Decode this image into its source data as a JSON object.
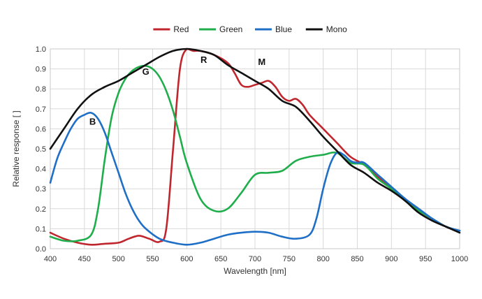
{
  "chart_data": {
    "type": "line",
    "xlabel": "Wavelength [nm]",
    "ylabel": "Relative response [ ]",
    "xlim": [
      400,
      1000
    ],
    "ylim": [
      0,
      1.0
    ],
    "x_ticks": [
      400,
      450,
      500,
      550,
      600,
      650,
      700,
      750,
      800,
      850,
      900,
      950,
      1000
    ],
    "y_ticks": [
      0.0,
      0.1,
      0.2,
      0.3,
      0.4,
      0.5,
      0.6,
      0.7,
      0.8,
      0.9,
      1.0
    ],
    "y_tick_labels": [
      "0.0",
      "0.1",
      "0.2",
      "0.3",
      "0.4",
      "0.5",
      "0.6",
      "0.7",
      "0.8",
      "0.9",
      "1.0"
    ],
    "grid": true,
    "legend_position": "top-center",
    "series": [
      {
        "name": "Red",
        "color": "#c0262d",
        "x": [
          400,
          420,
          440,
          460,
          480,
          500,
          515,
          530,
          545,
          560,
          570,
          580,
          590,
          600,
          610,
          620,
          640,
          660,
          670,
          680,
          690,
          700,
          710,
          720,
          730,
          740,
          750,
          760,
          770,
          780,
          800,
          820,
          840,
          860,
          880,
          900,
          920,
          940,
          960,
          980,
          1000
        ],
        "y": [
          0.08,
          0.05,
          0.03,
          0.02,
          0.025,
          0.03,
          0.05,
          0.065,
          0.05,
          0.035,
          0.1,
          0.5,
          0.9,
          1.0,
          0.99,
          0.99,
          0.97,
          0.93,
          0.88,
          0.82,
          0.81,
          0.82,
          0.83,
          0.84,
          0.81,
          0.76,
          0.74,
          0.75,
          0.72,
          0.67,
          0.6,
          0.53,
          0.46,
          0.42,
          0.36,
          0.3,
          0.25,
          0.19,
          0.15,
          0.11,
          0.09
        ]
      },
      {
        "name": "Green",
        "color": "#1fae4b",
        "x": [
          400,
          420,
          440,
          460,
          470,
          480,
          490,
          500,
          510,
          520,
          530,
          540,
          550,
          560,
          570,
          580,
          590,
          600,
          620,
          640,
          660,
          680,
          700,
          720,
          740,
          760,
          780,
          800,
          820,
          840,
          860,
          880,
          900,
          920,
          940,
          960,
          980,
          1000
        ],
        "y": [
          0.06,
          0.04,
          0.04,
          0.07,
          0.2,
          0.45,
          0.66,
          0.78,
          0.85,
          0.89,
          0.91,
          0.915,
          0.9,
          0.86,
          0.79,
          0.69,
          0.56,
          0.43,
          0.25,
          0.19,
          0.2,
          0.28,
          0.37,
          0.38,
          0.39,
          0.44,
          0.46,
          0.47,
          0.48,
          0.43,
          0.42,
          0.35,
          0.3,
          0.24,
          0.19,
          0.15,
          0.11,
          0.09
        ]
      },
      {
        "name": "Blue",
        "color": "#1f6fc6",
        "x": [
          400,
          410,
          420,
          430,
          440,
          450,
          460,
          470,
          480,
          490,
          500,
          510,
          520,
          530,
          540,
          560,
          580,
          600,
          620,
          640,
          660,
          680,
          700,
          720,
          740,
          760,
          780,
          790,
          800,
          810,
          820,
          830,
          840,
          850,
          860,
          880,
          900,
          920,
          940,
          960,
          980,
          1000
        ],
        "y": [
          0.33,
          0.45,
          0.53,
          0.6,
          0.65,
          0.67,
          0.68,
          0.65,
          0.58,
          0.48,
          0.38,
          0.28,
          0.2,
          0.14,
          0.1,
          0.05,
          0.03,
          0.02,
          0.03,
          0.05,
          0.07,
          0.08,
          0.085,
          0.08,
          0.06,
          0.05,
          0.07,
          0.15,
          0.3,
          0.42,
          0.48,
          0.47,
          0.44,
          0.43,
          0.43,
          0.37,
          0.31,
          0.25,
          0.2,
          0.15,
          0.11,
          0.09
        ]
      },
      {
        "name": "Mono",
        "color": "#111111",
        "x": [
          400,
          420,
          440,
          460,
          480,
          500,
          520,
          540,
          560,
          580,
          600,
          620,
          640,
          660,
          680,
          700,
          720,
          740,
          760,
          780,
          800,
          820,
          840,
          860,
          880,
          900,
          920,
          940,
          960,
          980,
          1000
        ],
        "y": [
          0.5,
          0.6,
          0.7,
          0.77,
          0.81,
          0.84,
          0.88,
          0.92,
          0.96,
          0.99,
          1.0,
          0.99,
          0.97,
          0.92,
          0.88,
          0.84,
          0.8,
          0.74,
          0.71,
          0.64,
          0.56,
          0.49,
          0.42,
          0.38,
          0.33,
          0.29,
          0.24,
          0.18,
          0.14,
          0.11,
          0.08
        ]
      }
    ],
    "annotations": [
      {
        "text": "B",
        "x": 462,
        "y": 0.62
      },
      {
        "text": "G",
        "x": 540,
        "y": 0.87
      },
      {
        "text": "R",
        "x": 625,
        "y": 0.93
      },
      {
        "text": "M",
        "x": 710,
        "y": 0.92
      }
    ]
  }
}
